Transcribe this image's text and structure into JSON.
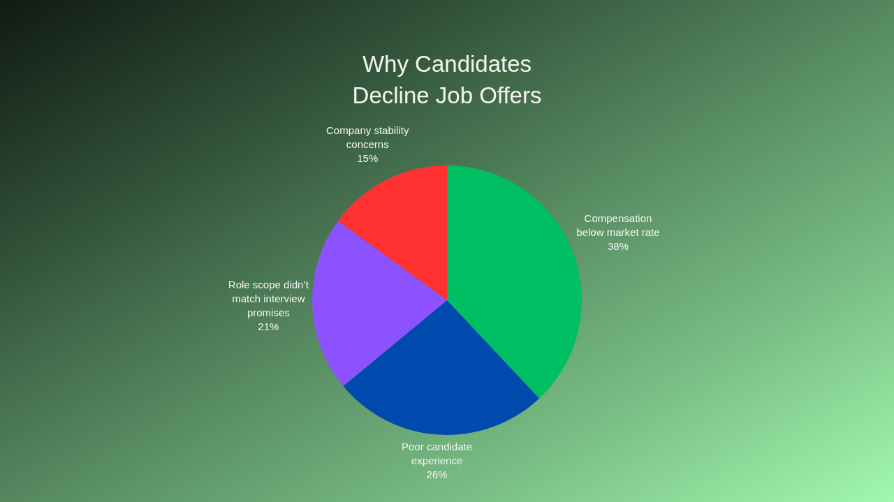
{
  "chart_data": {
    "type": "pie",
    "title": "Why Candidates Decline Job Offers",
    "categories": [
      "Compensation below market rate",
      "Poor candidate experience",
      "Role scope didn’t match interview promises",
      "Company stability concerns"
    ],
    "values": [
      38,
      26,
      21,
      15
    ],
    "value_labels": [
      "38%",
      "26%",
      "21%",
      "15%"
    ],
    "colors": [
      "#00bf63",
      "#004aad",
      "#8c52ff",
      "#ff3131"
    ]
  }
}
